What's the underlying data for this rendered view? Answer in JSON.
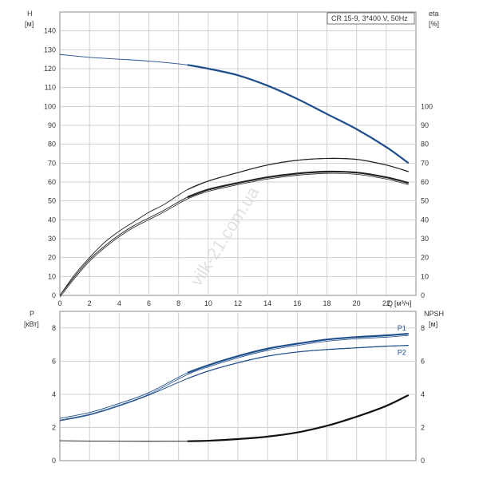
{
  "watermark": "vilk-21.com.ua",
  "chart_data": [
    {
      "type": "line",
      "legend_text": "CR 15-9, 3*400 V, 50Hz",
      "legend_position": "top-right",
      "x_label": "Q",
      "x_unit": "[м³/ч]",
      "left_label": "H",
      "left_unit": "[м]",
      "right_label": "eta",
      "right_unit": "[%]",
      "xlim": [
        0,
        24
      ],
      "ylim_left": [
        0,
        150
      ],
      "ylim_right": [
        0,
        150
      ],
      "x_ticks": [
        "0",
        "2",
        "4",
        "6",
        "8",
        "10",
        "12",
        "14",
        "16",
        "18",
        "20",
        "22"
      ],
      "left_ticks": [
        "0",
        "10",
        "20",
        "30",
        "40",
        "50",
        "60",
        "70",
        "80",
        "90",
        "100",
        "110",
        "120",
        "130",
        "140"
      ],
      "right_ticks": [
        "0",
        "10",
        "20",
        "30",
        "40",
        "50",
        "60",
        "70",
        "80",
        "90",
        "100"
      ],
      "grid": true,
      "operating_start_q": 8.6,
      "series": [
        {
          "color": "#1f4e8c",
          "width": 2.2,
          "style": "single",
          "points": [
            [
              0,
              127.5
            ],
            [
              2,
              126
            ],
            [
              4,
              125
            ],
            [
              6,
              124
            ],
            [
              8.6,
              122
            ],
            [
              10,
              120
            ],
            [
              12,
              116.5
            ],
            [
              14,
              111
            ],
            [
              16,
              104
            ],
            [
              18,
              96
            ],
            [
              20,
              88
            ],
            [
              22,
              78.5
            ],
            [
              23.5,
              70
            ]
          ]
        },
        {
          "color": "#222222",
          "width": 2.2,
          "style": "double",
          "points": [
            [
              0,
              0
            ],
            [
              1,
              10
            ],
            [
              2,
              19
            ],
            [
              3,
              26
            ],
            [
              4,
              32
            ],
            [
              5,
              37
            ],
            [
              6,
              41
            ],
            [
              7,
              45
            ],
            [
              8.6,
              52
            ],
            [
              10,
              56
            ],
            [
              12,
              59.5
            ],
            [
              14,
              62.5
            ],
            [
              16,
              64.5
            ],
            [
              18,
              65.5
            ],
            [
              20,
              65
            ],
            [
              22,
              62.5
            ],
            [
              23.5,
              59.5
            ]
          ]
        },
        {
          "color": "#222222",
          "width": 1.1,
          "style": "single",
          "points": [
            [
              0,
              0
            ],
            [
              1,
              11
            ],
            [
              2,
              20
            ],
            [
              3,
              28
            ],
            [
              4,
              34
            ],
            [
              5,
              39
            ],
            [
              6,
              44
            ],
            [
              7,
              48
            ],
            [
              8.6,
              56
            ],
            [
              10,
              60.5
            ],
            [
              12,
              65
            ],
            [
              14,
              69
            ],
            [
              16,
              71.5
            ],
            [
              18,
              72.5
            ],
            [
              20,
              72
            ],
            [
              22,
              69
            ],
            [
              23.5,
              65.5
            ]
          ]
        }
      ]
    },
    {
      "type": "line",
      "x_label": "",
      "left_label": "P",
      "left_unit": "[кВт]",
      "right_label": "NPSH",
      "right_unit": "[м]",
      "xlim": [
        0,
        24
      ],
      "ylim_left": [
        0,
        9
      ],
      "ylim_right": [
        0,
        9
      ],
      "left_ticks": [
        "0",
        "2",
        "4",
        "6",
        "8"
      ],
      "right_ticks": [
        "0",
        "2",
        "4",
        "6",
        "8"
      ],
      "grid": true,
      "operating_start_q": 8.6,
      "series": [
        {
          "name": "P1",
          "color": "#1f4e8c",
          "width": 2.2,
          "style": "double",
          "points": [
            [
              0,
              2.55
            ],
            [
              2,
              2.9
            ],
            [
              4,
              3.45
            ],
            [
              6,
              4.1
            ],
            [
              8.6,
              5.3
            ],
            [
              10,
              5.75
            ],
            [
              12,
              6.3
            ],
            [
              14,
              6.75
            ],
            [
              16,
              7.05
            ],
            [
              18,
              7.3
            ],
            [
              20,
              7.45
            ],
            [
              22,
              7.55
            ],
            [
              23.5,
              7.65
            ]
          ]
        },
        {
          "name": "P2",
          "color": "#1f4e8c",
          "width": 1.1,
          "style": "single",
          "points": [
            [
              0,
              2.4
            ],
            [
              2,
              2.75
            ],
            [
              4,
              3.3
            ],
            [
              6,
              3.95
            ],
            [
              8.6,
              4.95
            ],
            [
              10,
              5.4
            ],
            [
              12,
              5.9
            ],
            [
              14,
              6.3
            ],
            [
              16,
              6.55
            ],
            [
              18,
              6.7
            ],
            [
              20,
              6.8
            ],
            [
              22,
              6.9
            ],
            [
              23.5,
              6.95
            ]
          ]
        },
        {
          "color": "#111111",
          "width": 2.2,
          "style": "single",
          "points": [
            [
              0,
              1.2
            ],
            [
              4,
              1.17
            ],
            [
              8.6,
              1.17
            ],
            [
              10,
              1.2
            ],
            [
              12,
              1.3
            ],
            [
              14,
              1.45
            ],
            [
              16,
              1.7
            ],
            [
              18,
              2.1
            ],
            [
              20,
              2.65
            ],
            [
              22,
              3.3
            ],
            [
              23.5,
              3.95
            ]
          ]
        }
      ]
    }
  ]
}
